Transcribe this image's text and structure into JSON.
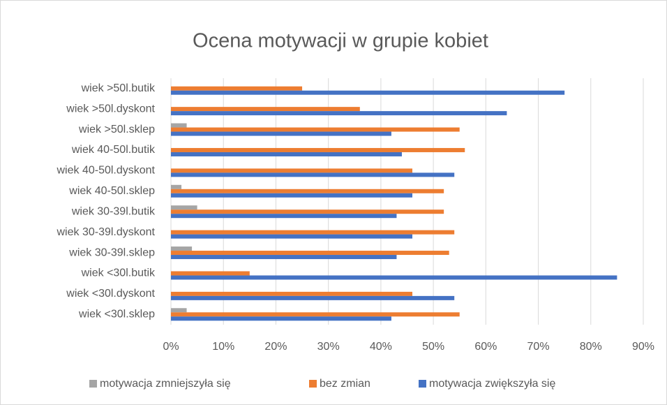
{
  "chart_data": {
    "type": "barh",
    "title": "Ocena motywacji w grupie kobiet",
    "categories": [
      "wiek >50l.butik",
      "wiek >50l.dyskont",
      "wiek >50l.sklep",
      "wiek 40-50l.butik",
      "wiek 40-50l.dyskont",
      "wiek 40-50l.sklep",
      "wiek 30-39l.butik",
      "wiek 30-39l.dyskont",
      "wiek 30-39l.sklep",
      "wiek <30l.butik",
      "wiek <30l.dyskont",
      "wiek <30l.sklep"
    ],
    "series": [
      {
        "name": "motywacja zmniejszyła się",
        "color": "#a5a5a5",
        "values": [
          0,
          0,
          3,
          0,
          0,
          2,
          5,
          0,
          4,
          0,
          0,
          3
        ]
      },
      {
        "name": "bez zmian",
        "color": "#ed7d31",
        "values": [
          25,
          36,
          55,
          56,
          46,
          52,
          52,
          54,
          53,
          15,
          46,
          55
        ]
      },
      {
        "name": "motywacja zwiększyła się",
        "color": "#4472c4",
        "values": [
          75,
          64,
          42,
          44,
          54,
          46,
          43,
          46,
          43,
          85,
          54,
          42
        ]
      }
    ],
    "xlim": [
      0,
      90
    ],
    "xticks": [
      {
        "value": 0,
        "label": "0%"
      },
      {
        "value": 10,
        "label": "10%"
      },
      {
        "value": 20,
        "label": "20%"
      },
      {
        "value": 30,
        "label": "30%"
      },
      {
        "value": 40,
        "label": "40%"
      },
      {
        "value": 50,
        "label": "50%"
      },
      {
        "value": 60,
        "label": "60%"
      },
      {
        "value": 70,
        "label": "70%"
      },
      {
        "value": 80,
        "label": "80%"
      },
      {
        "value": 90,
        "label": "90%"
      }
    ],
    "grid": true,
    "legend": "bottom"
  }
}
